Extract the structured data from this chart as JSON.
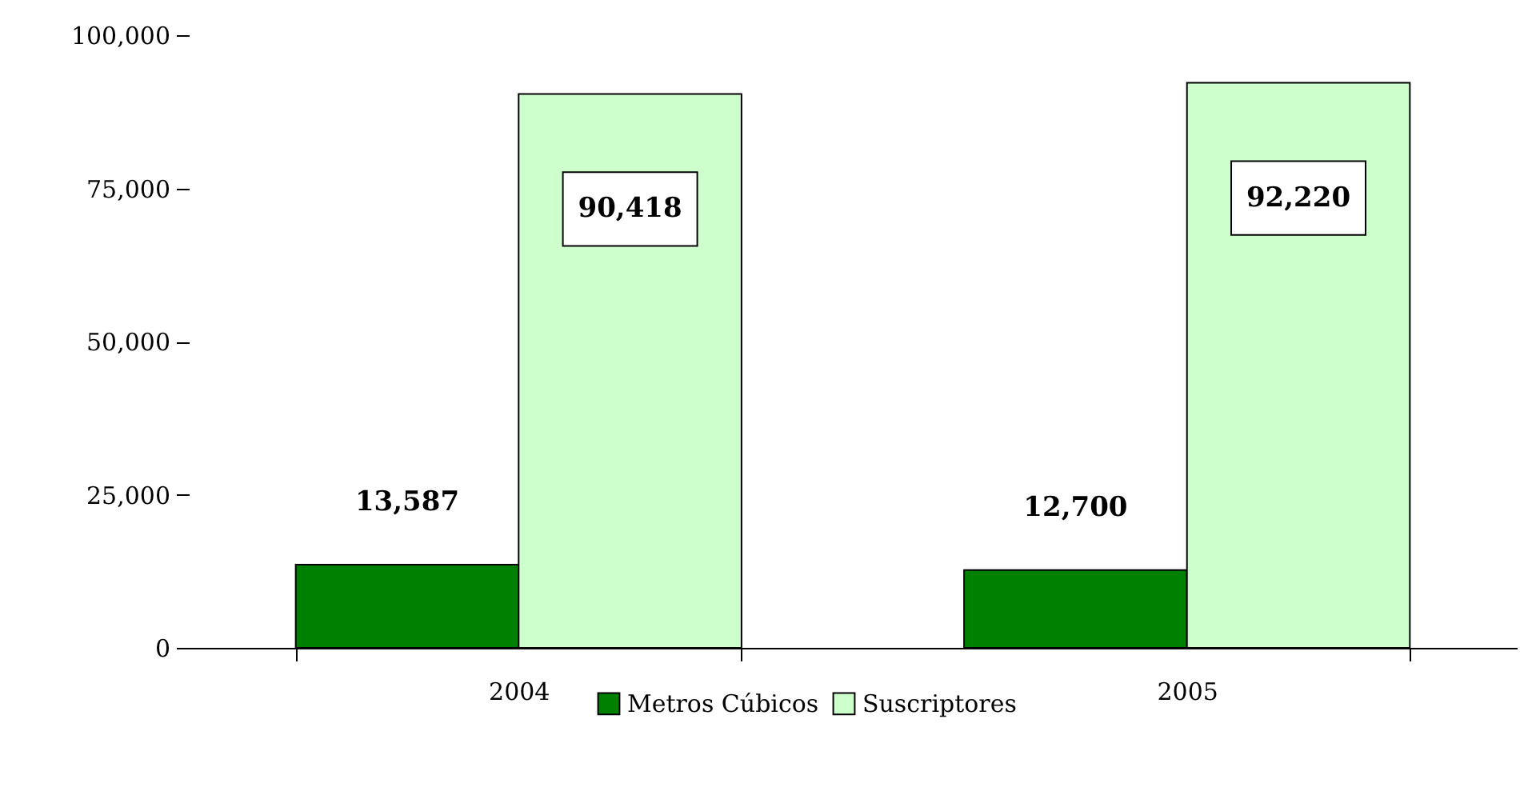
{
  "chart_data": {
    "type": "bar",
    "categories": [
      "2004",
      "2005"
    ],
    "series": [
      {
        "name": "Metros Cúbicos",
        "color": "#008000",
        "values": [
          13587,
          12700
        ],
        "value_labels": [
          "13,587",
          "12,700"
        ]
      },
      {
        "name": "Suscriptores",
        "color": "#ccffcc",
        "values": [
          90418,
          92220
        ],
        "value_labels": [
          "90,418",
          "92,220"
        ]
      }
    ],
    "ylim": [
      0,
      100000
    ],
    "yticks": [
      0,
      {
        "value": 25000,
        "label": "25,000"
      },
      {
        "value": 50000,
        "label": "50,000"
      },
      {
        "value": 75000,
        "label": "75,000"
      },
      {
        "value": 100000,
        "label": "100,000"
      }
    ],
    "grid": false,
    "legend": "bottom"
  }
}
